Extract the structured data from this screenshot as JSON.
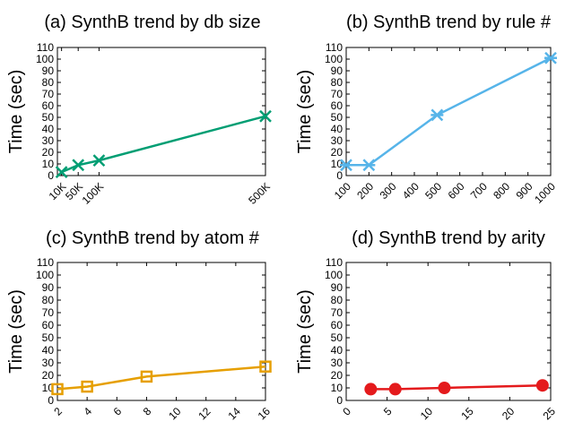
{
  "chart_data": [
    {
      "type": "line",
      "title": "(a) SynthB trend by db size",
      "ylabel": "Time (sec)",
      "xlabel": "",
      "ylim": [
        0,
        110
      ],
      "yticks": [
        0,
        10,
        20,
        30,
        40,
        50,
        60,
        70,
        80,
        90,
        100,
        110
      ],
      "xlim": [
        0,
        500000
      ],
      "xticks": [
        {
          "value": 10000,
          "label": "10K"
        },
        {
          "value": 50000,
          "label": "50K"
        },
        {
          "value": 100000,
          "label": "100K"
        },
        {
          "value": 500000,
          "label": "500K"
        }
      ],
      "xtick_rotation": 45,
      "series": [
        {
          "name": "db size",
          "marker": "x",
          "color": "#009e73",
          "x": [
            10000,
            50000,
            100000,
            500000
          ],
          "y": [
            3,
            9,
            13,
            51
          ]
        }
      ]
    },
    {
      "type": "line",
      "title": "(b) SynthB trend by rule #",
      "ylabel": "Time (sec)",
      "xlabel": "",
      "ylim": [
        0,
        110
      ],
      "yticks": [
        0,
        10,
        20,
        30,
        40,
        50,
        60,
        70,
        80,
        90,
        100,
        110
      ],
      "xlim": [
        100,
        1000
      ],
      "xticks": [
        {
          "value": 100,
          "label": "100"
        },
        {
          "value": 200,
          "label": "200"
        },
        {
          "value": 300,
          "label": "300"
        },
        {
          "value": 400,
          "label": "400"
        },
        {
          "value": 500,
          "label": "500"
        },
        {
          "value": 600,
          "label": "600"
        },
        {
          "value": 700,
          "label": "700"
        },
        {
          "value": 800,
          "label": "800"
        },
        {
          "value": 900,
          "label": "900"
        },
        {
          "value": 1000,
          "label": "1000"
        }
      ],
      "xtick_rotation": 45,
      "series": [
        {
          "name": "rule #",
          "marker": "asterisk",
          "color": "#56b4e9",
          "x": [
            100,
            200,
            500,
            1000
          ],
          "y": [
            9,
            9,
            52,
            101
          ]
        }
      ]
    },
    {
      "type": "line",
      "title": "(c) SynthB trend by atom #",
      "ylabel": "Time (sec)",
      "xlabel": "",
      "ylim": [
        0,
        110
      ],
      "yticks": [
        0,
        10,
        20,
        30,
        40,
        50,
        60,
        70,
        80,
        90,
        100,
        110
      ],
      "xlim": [
        2,
        16
      ],
      "xticks": [
        {
          "value": 2,
          "label": "2"
        },
        {
          "value": 4,
          "label": "4"
        },
        {
          "value": 6,
          "label": "6"
        },
        {
          "value": 8,
          "label": "8"
        },
        {
          "value": 10,
          "label": "10"
        },
        {
          "value": 12,
          "label": "12"
        },
        {
          "value": 14,
          "label": "14"
        },
        {
          "value": 16,
          "label": "16"
        }
      ],
      "xtick_rotation": 45,
      "series": [
        {
          "name": "atom #",
          "marker": "square",
          "color": "#e69f00",
          "x": [
            2,
            4,
            8,
            16
          ],
          "y": [
            9,
            11,
            19,
            27
          ]
        }
      ]
    },
    {
      "type": "line",
      "title": "(d) SynthB trend by arity",
      "ylabel": "Time (sec)",
      "xlabel": "",
      "ylim": [
        0,
        110
      ],
      "yticks": [
        0,
        10,
        20,
        30,
        40,
        50,
        60,
        70,
        80,
        90,
        100,
        110
      ],
      "xlim": [
        0,
        25
      ],
      "xticks": [
        {
          "value": 0,
          "label": "0"
        },
        {
          "value": 5,
          "label": "5"
        },
        {
          "value": 10,
          "label": "10"
        },
        {
          "value": 15,
          "label": "15"
        },
        {
          "value": 20,
          "label": "20"
        },
        {
          "value": 25,
          "label": "25"
        }
      ],
      "xtick_rotation": 45,
      "series": [
        {
          "name": "arity",
          "marker": "circle",
          "color": "#e41a1c",
          "x": [
            3,
            6,
            12,
            24
          ],
          "y": [
            9,
            9,
            10,
            12
          ]
        }
      ]
    }
  ]
}
